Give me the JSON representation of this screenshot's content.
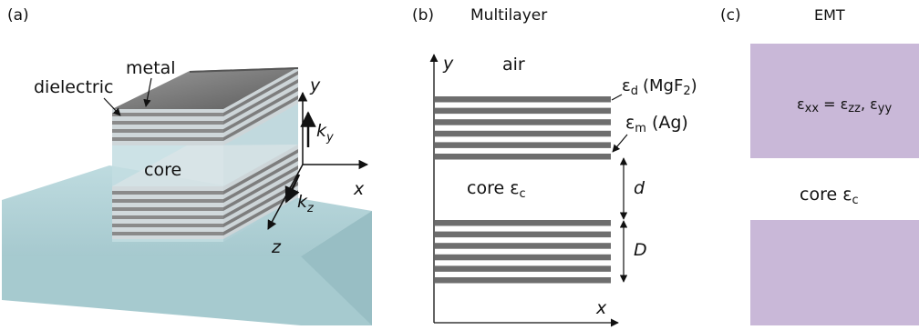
{
  "panel_a": {
    "tag": "(a)",
    "labels": {
      "metal": "metal",
      "dielectric": "dielectric",
      "core": "core"
    },
    "axes": {
      "y": "y",
      "x": "x",
      "z": "z",
      "ky": "k",
      "ky_sub": "y",
      "kz": "k",
      "kz_sub": "z"
    },
    "colors": {
      "substrate": "#a8cdd3",
      "top": "#7a7a7a",
      "side": "#c8c8c8",
      "core": "#b9d4da"
    }
  },
  "panel_b": {
    "tag": "(b)",
    "title": "Multilayer",
    "air": "air",
    "y": "y",
    "x": "x",
    "eps_d": "ε",
    "eps_d_sub": "d",
    "eps_d_mat_pre": "(MgF",
    "eps_d_mat_sub": "2",
    "eps_d_mat_post": ")",
    "eps_m": "ε",
    "eps_m_sub": "m",
    "eps_m_mat": "(Ag)",
    "core_text": "core ε",
    "core_sub": "c",
    "d": "d",
    "D": "D",
    "top_stripes": 6,
    "bottom_stripes": 6,
    "stripe_color": "#6e6e6e"
  },
  "panel_c": {
    "tag": "(c)",
    "title": "EMT",
    "formula": {
      "e1": "ε",
      "s1": "xx",
      "eq": " = ",
      "e2": "ε",
      "s2": "zz",
      "comma": ", ",
      "e3": "ε",
      "s3": "yy"
    },
    "core_text": "core ε",
    "core_sub": "c",
    "fill_color": "#c9b8d8"
  }
}
